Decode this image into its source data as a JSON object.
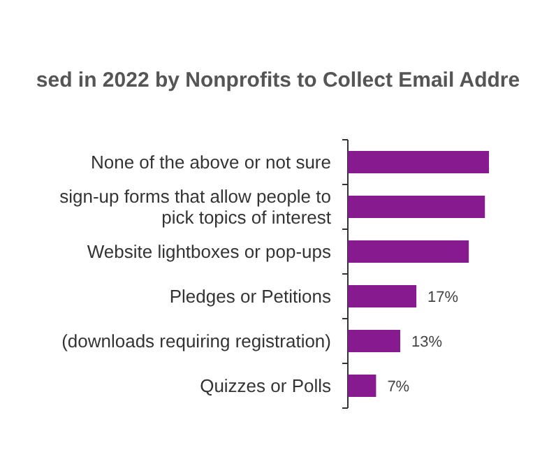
{
  "chart_data": {
    "type": "bar",
    "orientation": "horizontal",
    "title": "sed in 2022 by Nonprofits to Collect Email Addre",
    "categories": [
      "None of the above or not sure",
      "sign-up forms that allow people to pick topics of interest",
      "Website lightboxes or pop-ups",
      "Pledges or Petitions",
      "(downloads requiring registration)",
      "Quizzes or Polls"
    ],
    "values": [
      35,
      34,
      30,
      17,
      13,
      7
    ],
    "value_labels": [
      null,
      null,
      null,
      "17%",
      "13%",
      "7%"
    ],
    "color": "#861a8e"
  }
}
